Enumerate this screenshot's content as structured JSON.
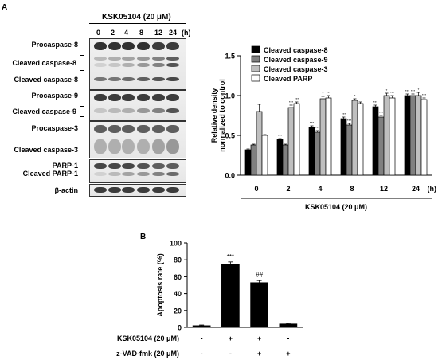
{
  "panel_a": {
    "letter": "A",
    "treatment_header": "KSK05104 (20 μM)",
    "time_labels": [
      "0",
      "2",
      "4",
      "8",
      "12",
      "24"
    ],
    "time_unit": "(h)",
    "blot_labels": {
      "procaspase8": "Procaspase-8",
      "cleaved8a": "Cleaved caspase-8",
      "cleaved8b": "Cleaved caspase-8",
      "procaspase9": "Procaspase-9",
      "cleaved9": "Cleaved caspase-9",
      "procaspase3": "Procaspase-3",
      "cleaved3": "Cleaved caspase-3",
      "parp1": "PARP-1",
      "cleaved_parp1": "Cleaved PARP-1",
      "actin": "β-actin"
    }
  },
  "panel_b": {
    "letter": "B"
  },
  "chart_data": [
    {
      "type": "bar",
      "xlabel": "KSK05104 (20 μM)",
      "x_unit": "(h)",
      "ylabel": "Relative density normalized to control",
      "ylim": [
        0,
        1.5
      ],
      "yticks": [
        "0.0",
        "0.5",
        "1.0",
        "1.5"
      ],
      "categories": [
        "0",
        "2",
        "4",
        "8",
        "12",
        "24"
      ],
      "legend_position": "top-right",
      "series": [
        {
          "name": "Cleaved caspase-8",
          "color": "#000000",
          "values": [
            0.32,
            0.45,
            0.6,
            0.71,
            0.86,
            1.0
          ],
          "errors": [
            0.01,
            0.01,
            0.02,
            0.02,
            0.02,
            0.02
          ]
        },
        {
          "name": "Cleaved caspase-9",
          "color": "#808080",
          "values": [
            0.38,
            0.38,
            0.54,
            0.63,
            0.73,
            1.0
          ],
          "errors": [
            0.01,
            0.01,
            0.02,
            0.02,
            0.02,
            0.02
          ]
        },
        {
          "name": "Cleaved caspase-3",
          "color": "#bfbfbf",
          "values": [
            0.8,
            0.85,
            0.96,
            0.94,
            1.0,
            1.0
          ],
          "errors": [
            0.09,
            0.03,
            0.03,
            0.02,
            0.03,
            0.04
          ]
        },
        {
          "name": "Cleaved PARP",
          "color": "#ffffff",
          "values": [
            0.5,
            0.9,
            0.97,
            0.9,
            0.97,
            0.95
          ],
          "errors": [
            0.01,
            0.02,
            0.03,
            0.02,
            0.03,
            0.02
          ]
        }
      ],
      "significance": [
        [
          "",
          "",
          "",
          ""
        ],
        [
          "***",
          "",
          "***",
          "***"
        ],
        [
          "***",
          "***",
          "*",
          "***"
        ],
        [
          "***",
          "***",
          "*",
          ""
        ],
        [
          "***",
          "***",
          "*",
          "***"
        ],
        [
          "***",
          "***",
          "*",
          "***"
        ]
      ]
    },
    {
      "type": "bar",
      "ylabel": "Apoptosis rate (%)",
      "ylim": [
        0,
        100
      ],
      "yticks": [
        "0",
        "20",
        "40",
        "60",
        "80",
        "100"
      ],
      "values": [
        2,
        75,
        53,
        4
      ],
      "errors": [
        0.8,
        2.5,
        2.5,
        0.8
      ],
      "significance": [
        "",
        "***",
        "##",
        ""
      ],
      "row_labels": [
        "KSK05104 (20 μM)",
        "z-VAD-fmk (20 μM)"
      ],
      "row_values": [
        [
          "-",
          "+",
          "+",
          "-"
        ],
        [
          "-",
          "-",
          "+",
          "+"
        ]
      ]
    }
  ]
}
